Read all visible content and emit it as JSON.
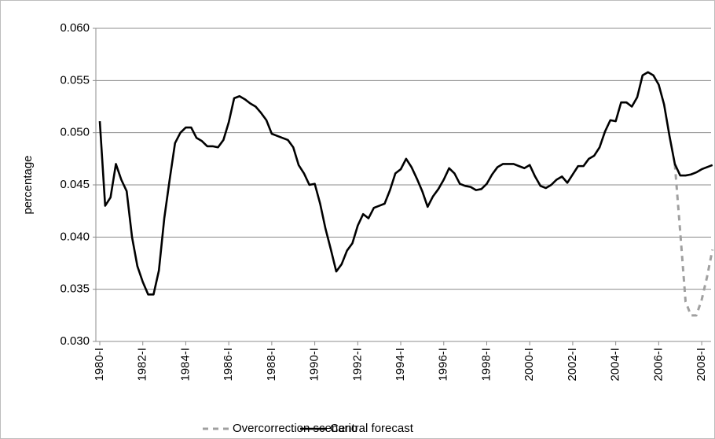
{
  "chart_data": {
    "type": "line",
    "y_label": "percentage",
    "categories": [
      "1980-I",
      null,
      null,
      null,
      null,
      null,
      null,
      null,
      "1982-I",
      null,
      null,
      null,
      null,
      null,
      null,
      null,
      "1984-I",
      null,
      null,
      null,
      null,
      null,
      null,
      null,
      "1986-I",
      null,
      null,
      null,
      null,
      null,
      null,
      null,
      "1988-I",
      null,
      null,
      null,
      null,
      null,
      null,
      null,
      "1990-I",
      null,
      null,
      null,
      null,
      null,
      null,
      null,
      "1992-I",
      null,
      null,
      null,
      null,
      null,
      null,
      null,
      "1994-I",
      null,
      null,
      null,
      null,
      null,
      null,
      null,
      "1996-I",
      null,
      null,
      null,
      null,
      null,
      null,
      null,
      "1998-I",
      null,
      null,
      null,
      null,
      null,
      null,
      null,
      "2000-I",
      null,
      null,
      null,
      null,
      null,
      null,
      null,
      "2002-I",
      null,
      null,
      null,
      null,
      null,
      null,
      null,
      "2004-I",
      null,
      null,
      null,
      null,
      null,
      null,
      null,
      "2006-I",
      null,
      null,
      null,
      null,
      null,
      null,
      null,
      "2008-I",
      null,
      null
    ],
    "series": [
      {
        "name": "Overcorrection scenario",
        "color": "#a0a0a0",
        "style": "dashed",
        "values": [
          null,
          null,
          null,
          null,
          null,
          null,
          null,
          null,
          null,
          null,
          null,
          null,
          null,
          null,
          null,
          null,
          null,
          null,
          null,
          null,
          null,
          null,
          null,
          null,
          null,
          null,
          null,
          null,
          null,
          null,
          null,
          null,
          null,
          null,
          null,
          null,
          null,
          null,
          null,
          null,
          null,
          null,
          null,
          null,
          null,
          null,
          null,
          null,
          null,
          null,
          null,
          null,
          null,
          null,
          null,
          null,
          null,
          null,
          null,
          null,
          null,
          null,
          null,
          null,
          null,
          null,
          null,
          null,
          null,
          null,
          null,
          null,
          null,
          null,
          null,
          null,
          null,
          null,
          null,
          null,
          null,
          null,
          null,
          null,
          null,
          null,
          null,
          null,
          null,
          null,
          null,
          null,
          null,
          null,
          null,
          null,
          null,
          null,
          null,
          null,
          null,
          null,
          null,
          null,
          null,
          null,
          null,
          0.047,
          0.0405,
          0.0338,
          0.0325,
          0.0325,
          0.034,
          0.0362,
          0.0388
        ]
      },
      {
        "name": "Central forecast",
        "color": "#000000",
        "style": "solid",
        "values": [
          0.0511,
          0.043,
          0.0438,
          0.047,
          0.0455,
          0.0444,
          0.04,
          0.0372,
          0.0357,
          0.0345,
          0.0345,
          0.0368,
          0.0418,
          0.0455,
          0.049,
          0.05,
          0.0505,
          0.0505,
          0.0495,
          0.0492,
          0.0487,
          0.0487,
          0.0486,
          0.0493,
          0.051,
          0.0533,
          0.0535,
          0.0532,
          0.0528,
          0.0525,
          0.0519,
          0.0512,
          0.0499,
          0.0497,
          0.0495,
          0.0493,
          0.0486,
          0.0469,
          0.0461,
          0.045,
          0.0451,
          0.0432,
          0.0408,
          0.0388,
          0.0367,
          0.0374,
          0.0387,
          0.0394,
          0.0411,
          0.0422,
          0.0418,
          0.0428,
          0.043,
          0.0432,
          0.0445,
          0.0461,
          0.0465,
          0.0475,
          0.0467,
          0.0456,
          0.0444,
          0.0429,
          0.0439,
          0.0446,
          0.0455,
          0.0466,
          0.0461,
          0.0451,
          0.0449,
          0.0448,
          0.0445,
          0.0446,
          0.0451,
          0.046,
          0.0467,
          0.047,
          0.047,
          0.047,
          0.0468,
          0.0466,
          0.0469,
          0.0458,
          0.0449,
          0.0447,
          0.045,
          0.0455,
          0.0458,
          0.0452,
          0.046,
          0.0468,
          0.0468,
          0.0475,
          0.0478,
          0.0486,
          0.0501,
          0.0512,
          0.0511,
          0.0529,
          0.0529,
          0.0525,
          0.0534,
          0.0555,
          0.0558,
          0.0555,
          0.0546,
          0.0527,
          0.0497,
          0.047,
          0.0459,
          0.0459,
          0.046,
          0.0462,
          0.0465,
          0.0467,
          0.0469
        ]
      }
    ],
    "ylim": [
      0.03,
      0.06
    ],
    "yticks": [
      {
        "value": 0.03,
        "label": "0.030"
      },
      0.035,
      {
        "value": 0.04,
        "label": "0.040"
      },
      0.045,
      {
        "value": 0.05,
        "label": "0.050"
      },
      0.055,
      {
        "value": 0.06,
        "label": "0.060"
      }
    ],
    "grid": true,
    "legend": "bottom"
  }
}
